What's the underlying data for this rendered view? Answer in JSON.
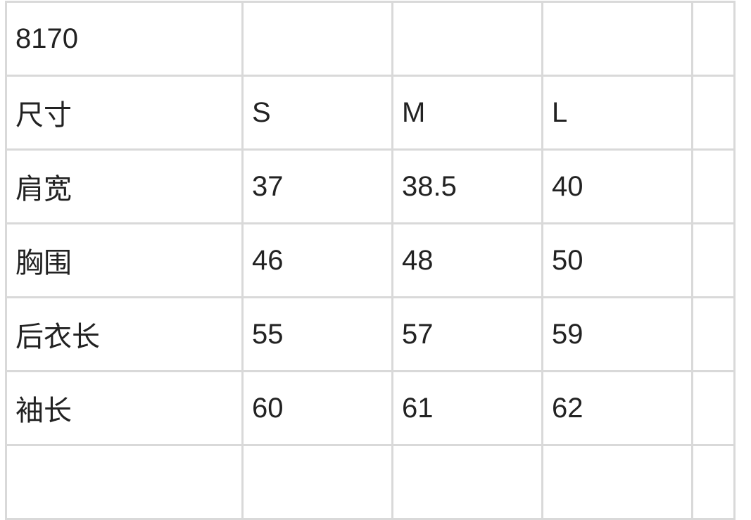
{
  "table": {
    "rows": [
      [
        "8170",
        "",
        "",
        ""
      ],
      [
        "尺寸",
        "S",
        "M",
        "L"
      ],
      [
        "肩宽",
        "37",
        "38.5",
        "40"
      ],
      [
        "胸围",
        "46",
        "48",
        "50"
      ],
      [
        "后衣长",
        "55",
        "57",
        "59"
      ],
      [
        "袖长",
        "60",
        "61",
        "62"
      ]
    ]
  }
}
